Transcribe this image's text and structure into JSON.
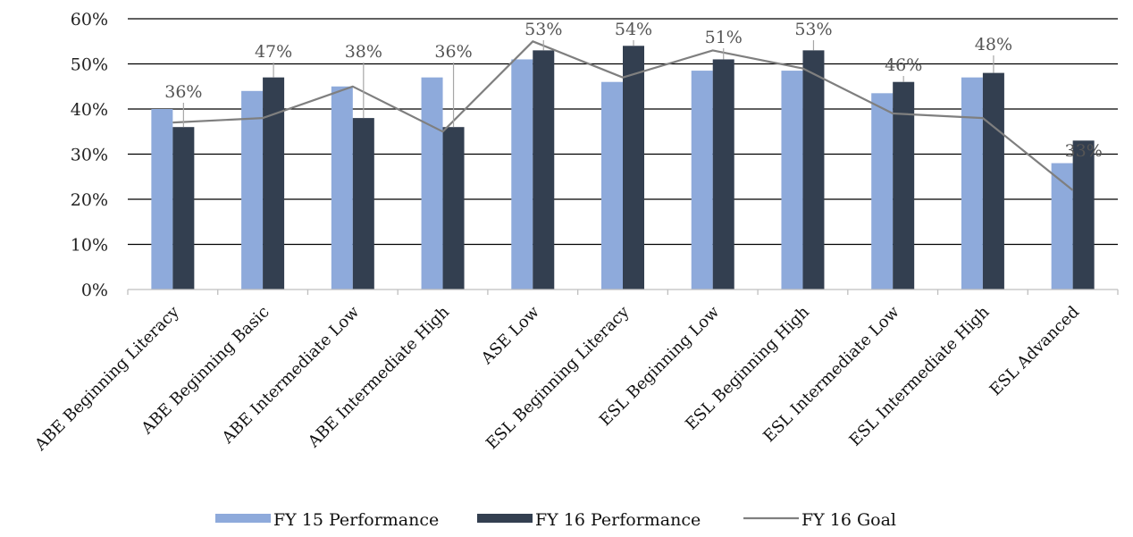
{
  "chart_data": {
    "type": "bar",
    "title": "",
    "xlabel": "",
    "ylabel": "",
    "ylim": [
      0,
      60
    ],
    "yticks": [
      "0%",
      "10%",
      "20%",
      "30%",
      "40%",
      "50%",
      "60%"
    ],
    "grid": true,
    "legend_placement": "bottom",
    "categories": [
      "ABE Beginning Literacy",
      "ABE Beginning Basic",
      "ABE Intermediate Low",
      "ABE Intermediate High",
      "ASE Low",
      "ESL Beginning Literacy",
      "ESL Beginning Low",
      "ESL Beginning High",
      "ESL Intermediate Low",
      "ESL Intermediate High",
      "ESL Advanced"
    ],
    "series": [
      {
        "name": "FY 15 Performance",
        "type": "bar",
        "color": "#8eaadb",
        "values": [
          40,
          44,
          45,
          47,
          51,
          46,
          48.5,
          48.5,
          43.5,
          47,
          28
        ]
      },
      {
        "name": "FY 16 Performance",
        "type": "bar",
        "color": "#333f50",
        "values": [
          36,
          47,
          38,
          36,
          53,
          54,
          51,
          53,
          46,
          48,
          33
        ],
        "data_labels": [
          "36%",
          "47%",
          "38%",
          "36%",
          "53%",
          "54%",
          "51%",
          "53%",
          "46%",
          "48%",
          "33%"
        ]
      },
      {
        "name": "FY 16 Goal",
        "type": "line",
        "color": "#7f7f7f",
        "values": [
          37,
          38,
          45,
          35,
          55,
          47,
          53,
          49,
          39,
          38,
          22
        ]
      }
    ]
  }
}
